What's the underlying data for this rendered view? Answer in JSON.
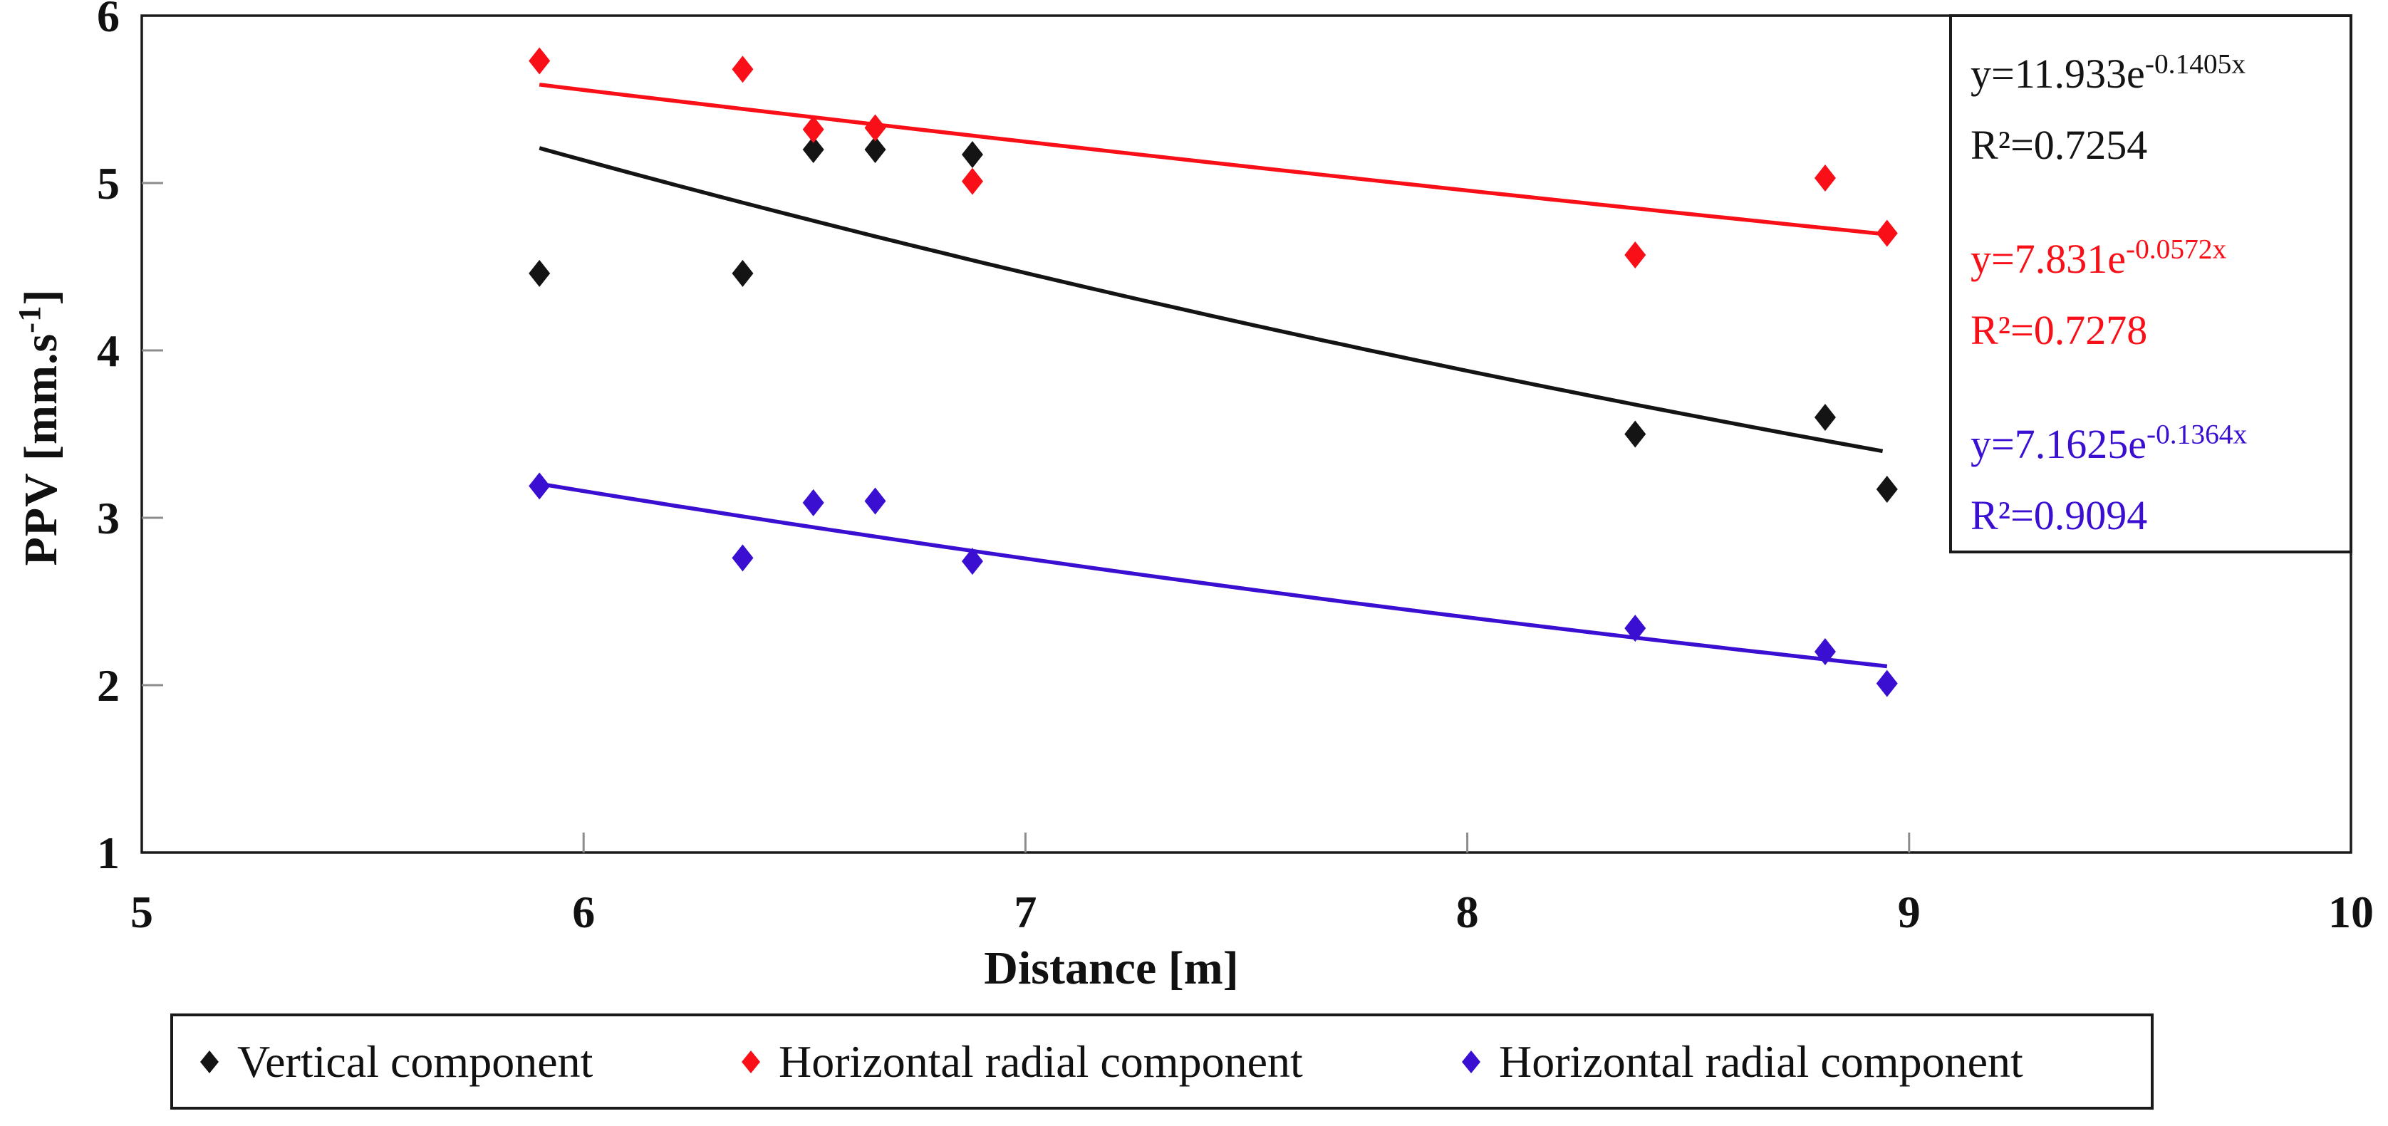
{
  "figure": {
    "x_axis_title": "Distance [m]",
    "y_axis_title": {
      "prefix": "PPV [mm.s",
      "sup": "-1",
      "suffix": "]"
    }
  },
  "chart_data": {
    "type": "scatter",
    "xlabel": "Distance [m]",
    "ylabel": "PPV [mm.s-1]",
    "xlim": [
      5,
      10
    ],
    "ylim": [
      1,
      6
    ],
    "xticks": [
      5,
      6,
      7,
      8,
      9,
      10
    ],
    "yticks": [
      1,
      2,
      3,
      4,
      5,
      6
    ],
    "grid": false,
    "legend_position": "bottom",
    "series": [
      {
        "name": "Vertical component",
        "color": "#141414",
        "marker": "diamond",
        "points": [
          [
            5.9,
            4.46
          ],
          [
            6.36,
            4.46
          ],
          [
            6.52,
            5.2
          ],
          [
            6.66,
            5.2
          ],
          [
            6.88,
            5.17
          ],
          [
            8.38,
            3.5
          ],
          [
            8.81,
            3.6
          ],
          [
            8.95,
            3.17
          ]
        ],
        "trend": {
          "type": "exponential",
          "a": 11.933,
          "b": -0.1405,
          "x_start": 5.9,
          "x_end": 8.94,
          "equation": "y=11.933e^-0.1405x",
          "r2": 0.7254
        }
      },
      {
        "name": "Horizontal radial component",
        "color": "#f90f17",
        "marker": "diamond",
        "points": [
          [
            5.9,
            5.73
          ],
          [
            6.36,
            5.68
          ],
          [
            6.52,
            5.32
          ],
          [
            6.66,
            5.33
          ],
          [
            6.88,
            5.01
          ],
          [
            8.38,
            4.57
          ],
          [
            8.81,
            5.03
          ],
          [
            8.95,
            4.7
          ]
        ],
        "trend": {
          "type": "exponential",
          "a": 7.831,
          "b": -0.0572,
          "x_start": 5.9,
          "x_end": 8.96,
          "equation": "y=7.831e^-0.0572x",
          "r2": 0.7278
        }
      },
      {
        "name": "Horizontal radial component",
        "color": "#3a0fd1",
        "marker": "diamond",
        "points": [
          [
            5.9,
            3.19
          ],
          [
            6.36,
            2.76
          ],
          [
            6.52,
            3.09
          ],
          [
            6.66,
            3.1
          ],
          [
            6.88,
            2.74
          ],
          [
            8.38,
            2.34
          ],
          [
            8.81,
            2.2
          ],
          [
            8.95,
            2.01
          ]
        ],
        "trend": {
          "type": "exponential",
          "a": 7.1625,
          "b": -0.1364,
          "x_start": 5.9,
          "x_end": 8.95,
          "equation": "y=7.1625e^-0.1364x",
          "r2": 0.9094
        }
      }
    ]
  },
  "equation_box": {
    "entries": [
      {
        "text": "y=11.933e",
        "sup": "-0.1405x",
        "r2": "R²=0.7254",
        "color": "#141414"
      },
      {
        "text": "y=7.831e",
        "sup": "-0.0572x",
        "r2": "R²=0.7278",
        "color": "#f90f17"
      },
      {
        "text": "y=7.1625e",
        "sup": "-0.1364x",
        "r2": "R²=0.9094",
        "color": "#3a0fd1"
      }
    ]
  },
  "legend": {
    "items": [
      {
        "label": "Vertical component",
        "color": "#141414"
      },
      {
        "label": "Horizontal radial component",
        "color": "#f90f17"
      },
      {
        "label": "Horizontal radial component",
        "color": "#3a0fd1"
      }
    ]
  },
  "axis_colors": {
    "frame": "#1a1a1a",
    "tick": "#8c8c8c",
    "tick_label": "#111111"
  }
}
